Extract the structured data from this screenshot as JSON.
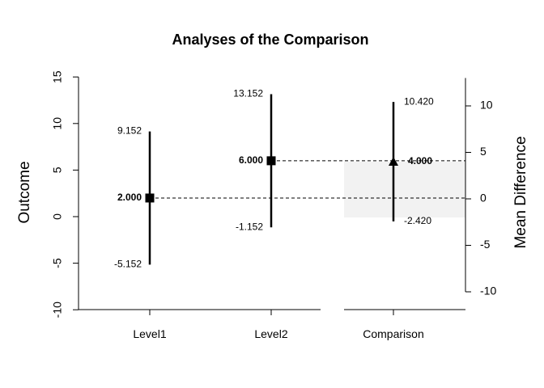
{
  "chart_data": {
    "type": "scatter",
    "title": "Analyses of the Comparison",
    "ylabel": "Outcome",
    "y2label": "Mean Difference",
    "ylim": [
      -10,
      15
    ],
    "yticks": [
      "-10",
      "-5",
      "0",
      "5",
      "10",
      "15"
    ],
    "y2lim": [
      -10,
      13
    ],
    "y2ticks": [
      "-10",
      "-5",
      "0",
      "5",
      "10"
    ],
    "categories": [
      "Level1",
      "Level2",
      "Comparison"
    ],
    "points": [
      {
        "category": "Level1",
        "mean": 2.0,
        "lower": -5.152,
        "upper": 9.152,
        "mean_label": "2.000",
        "lower_label": "-5.152",
        "upper_label": "9.152",
        "marker": "square",
        "axis": "left"
      },
      {
        "category": "Level2",
        "mean": 6.0,
        "lower": -1.152,
        "upper": 13.152,
        "mean_label": "6.000",
        "lower_label": "-1.152",
        "upper_label": "13.152",
        "marker": "square",
        "axis": "left"
      },
      {
        "category": "Comparison",
        "mean": 4.0,
        "lower": -2.42,
        "upper": 10.42,
        "mean_label": "4.000",
        "lower_label": "-2.420",
        "upper_label": "10.420",
        "marker": "triangle",
        "axis": "right"
      }
    ],
    "reference_lines": [
      2.0,
      6.0
    ],
    "shaded_band": {
      "axis": "right",
      "from": -2,
      "to": 4
    },
    "colors": {
      "marks": "#000000",
      "band": "#f2f2f2"
    }
  }
}
